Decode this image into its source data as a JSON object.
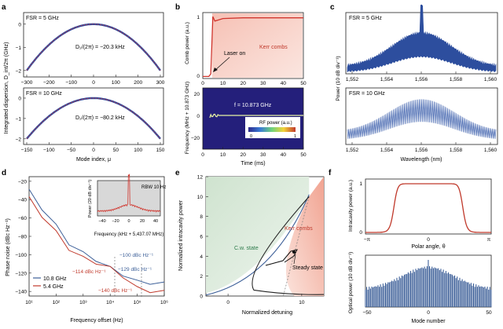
{
  "panels": {
    "a": {
      "letter": "a",
      "ylabel": "Integrated dispersion, D_int/2π (GHz)",
      "xlabel": "Mode index, μ",
      "top": {
        "fsr": "FSR = 5 GHz",
        "eq": "D₂/(2π) = −20.3 kHz",
        "xticks": [
          "−300",
          "−200",
          "−100",
          "0",
          "100",
          "200",
          "300"
        ],
        "yticks": [
          "0",
          "−1",
          "−2"
        ]
      },
      "bottom": {
        "fsr": "FSR = 10 GHz",
        "eq": "D₂/(2π) = −80.2 kHz",
        "xticks": [
          "−150",
          "−100",
          "−50",
          "0",
          "50",
          "100",
          "150"
        ],
        "yticks": [
          "0",
          "−1",
          "−2"
        ]
      }
    },
    "b": {
      "letter": "b",
      "top_ylabel": "Comb power (a.u.)",
      "top_yticks": [
        "0",
        "1"
      ],
      "laser_on": "Laser on",
      "kerr": "Kerr combs",
      "bottom_ylabel": "Frequency (MHz + 10.873 GHz)",
      "bottom_yticks": [
        "20",
        "0",
        "−20"
      ],
      "f_label": "f = 10.873 GHz",
      "rf_label": "RF power (a.u.)",
      "rf_ticks": [
        "0",
        "1"
      ],
      "xticks": [
        "0",
        "10",
        "20",
        "30",
        "40",
        "50"
      ],
      "xlabel": "Time (ms)"
    },
    "c": {
      "letter": "c",
      "ylabel": "Power (10 dB div⁻¹)",
      "top_fsr": "FSR = 5 GHz",
      "bottom_fsr": "FSR = 10 GHz",
      "xticks": [
        "1,552",
        "1,554",
        "1,556",
        "1,558",
        "1,560"
      ],
      "xlabel": "Wavelength (nm)"
    },
    "d": {
      "letter": "d",
      "ylabel": "Phase noise (dBc Hz⁻¹)",
      "xlabel": "Frequency offset (Hz)",
      "yticks": [
        "−20",
        "−40",
        "−60",
        "−80",
        "−100",
        "−120",
        "−140"
      ],
      "xticks": [
        "10¹",
        "10²",
        "10³",
        "10⁴",
        "10⁵",
        "10⁶"
      ],
      "legend": [
        {
          "label": "10.8 GHz",
          "color": "#3c5f98"
        },
        {
          "label": "5.4 GHz",
          "color": "#c0392b"
        }
      ],
      "annotations": [
        "−100 dBc Hz⁻¹",
        "−129 dBc Hz⁻¹",
        "−114 dBc Hz⁻¹",
        "−140 dBc Hz⁻¹"
      ],
      "inset": {
        "ylabel": "Power (20 dB div⁻¹)",
        "rbw": "RBW 10 Hz",
        "xticks": [
          "−40",
          "−20",
          "0",
          "20",
          "40"
        ],
        "xlabel": "Frequency (kHz + 5,437.07 MHz)"
      }
    },
    "e": {
      "letter": "e",
      "ylabel": "Normalized intracavity power",
      "xlabel": "Normalized detuning",
      "yticks": [
        "0",
        "2",
        "4",
        "6",
        "8",
        "10",
        "12"
      ],
      "xticks": [
        "0",
        "10"
      ],
      "cw": "C.w. state",
      "kerr": "Kerr combs",
      "steady": "Steady state"
    },
    "f": {
      "letter": "f",
      "top_ylabel": "Intracavity power (a.u.)",
      "top_yticks": [
        "0",
        "1"
      ],
      "top_xticks": [
        "−π",
        "0",
        "π"
      ],
      "top_xlabel": "Polar angle, θ",
      "bottom_ylabel": "Optical power (10 dB div⁻¹)",
      "bottom_xticks": [
        "−50",
        "0",
        "50"
      ],
      "bottom_xlabel": "Mode number"
    }
  },
  "chart_data": [
    {
      "type": "scatter",
      "panel": "a-top",
      "x_range": [
        -300,
        300
      ],
      "ylim": [
        -2.5,
        0.3
      ],
      "fit": "parabola",
      "d2_khz": -20.3
    },
    {
      "type": "scatter",
      "panel": "a-bottom",
      "x_range": [
        -150,
        150
      ],
      "ylim": [
        -2.5,
        0.3
      ],
      "fit": "parabola",
      "d2_khz": -80.2
    },
    {
      "type": "line",
      "panel": "b-top",
      "x": [
        0,
        3,
        4,
        5,
        6,
        8,
        10,
        20,
        30,
        40,
        50
      ],
      "y": [
        0.02,
        0.02,
        0.06,
        0.95,
        0.88,
        0.9,
        0.92,
        0.93,
        0.93,
        0.93,
        0.93
      ],
      "xlim": [
        0,
        50
      ],
      "ylim": [
        0,
        1
      ]
    },
    {
      "type": "heatmap",
      "panel": "b-bottom",
      "xlim": [
        0,
        50
      ],
      "ylim": [
        -25,
        25
      ],
      "trace_freq_mhz": 0
    },
    {
      "type": "line",
      "panel": "d",
      "series": [
        {
          "name": "10.8 GHz",
          "x": [
            10,
            30,
            100,
            300,
            1000,
            3000,
            10000,
            30000,
            100000,
            300000,
            1000000
          ],
          "y": [
            -30,
            -50,
            -68,
            -88,
            -98,
            -106,
            -114,
            -122,
            -129,
            -131,
            -131
          ]
        },
        {
          "name": "5.4 GHz",
          "x": [
            10,
            30,
            100,
            300,
            1000,
            3000,
            10000,
            30000,
            100000,
            300000,
            1000000
          ],
          "y": [
            -38,
            -58,
            -75,
            -94,
            -103,
            -109,
            -114,
            -124,
            -136,
            -140,
            -140
          ]
        }
      ],
      "xscale": "log",
      "xlim": [
        10,
        1000000
      ],
      "ylim": [
        -145,
        -15
      ]
    },
    {
      "type": "area",
      "panel": "e",
      "xlim": [
        -3,
        13
      ],
      "ylim": [
        0,
        12
      ]
    },
    {
      "type": "line",
      "panel": "f-top",
      "xlim": [
        -3.14,
        3.14
      ],
      "ylim": [
        0,
        1
      ],
      "shape": "flat-top"
    },
    {
      "type": "bar",
      "panel": "f-bottom",
      "xlim": [
        -50,
        50
      ]
    }
  ]
}
